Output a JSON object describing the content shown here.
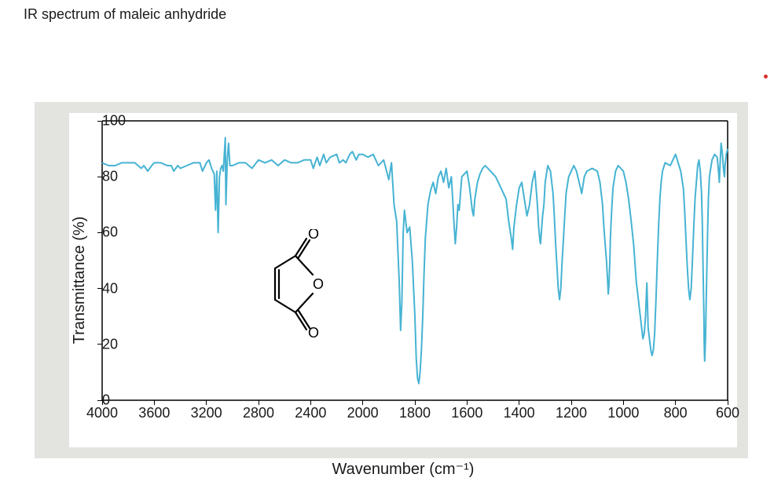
{
  "title": "IR spectrum of maleic anhydride",
  "chart": {
    "type": "line",
    "background_color": "#ffffff",
    "frame_color": "#e3e3e0",
    "line_color": "#46b3d3",
    "line_width": 2,
    "axis_color": "#000000",
    "axis_line_width": 1.5,
    "xlim": [
      4000,
      600
    ],
    "ylim": [
      0,
      100
    ],
    "xticks": [
      4000,
      3600,
      3200,
      2800,
      2400,
      2000,
      1800,
      1600,
      1400,
      1200,
      1000,
      800,
      600
    ],
    "yticks": [
      0,
      20,
      40,
      60,
      80,
      100
    ],
    "xlabel": "Wavenumber (cm⁻¹)",
    "ylabel": "Transmittance (%)",
    "label_fontsize": 20,
    "tick_fontsize": 18,
    "x_scale_break": 2000,
    "data": [
      [
        4000,
        85
      ],
      [
        3950,
        84
      ],
      [
        3900,
        84
      ],
      [
        3850,
        85
      ],
      [
        3800,
        85
      ],
      [
        3750,
        85
      ],
      [
        3700,
        83
      ],
      [
        3680,
        84
      ],
      [
        3650,
        82
      ],
      [
        3620,
        84
      ],
      [
        3600,
        85
      ],
      [
        3550,
        85
      ],
      [
        3500,
        84
      ],
      [
        3470,
        84
      ],
      [
        3450,
        82
      ],
      [
        3420,
        84
      ],
      [
        3400,
        83
      ],
      [
        3350,
        84
      ],
      [
        3300,
        85
      ],
      [
        3280,
        85
      ],
      [
        3250,
        85
      ],
      [
        3230,
        82
      ],
      [
        3200,
        85
      ],
      [
        3180,
        86
      ],
      [
        3160,
        83
      ],
      [
        3140,
        81
      ],
      [
        3130,
        68
      ],
      [
        3120,
        82
      ],
      [
        3110,
        60
      ],
      [
        3100,
        80
      ],
      [
        3090,
        83
      ],
      [
        3080,
        84
      ],
      [
        3070,
        82
      ],
      [
        3060,
        90
      ],
      [
        3055,
        94
      ],
      [
        3050,
        70
      ],
      [
        3040,
        86
      ],
      [
        3030,
        92
      ],
      [
        3020,
        84
      ],
      [
        3000,
        84
      ],
      [
        2950,
        85
      ],
      [
        2900,
        85
      ],
      [
        2850,
        83
      ],
      [
        2800,
        86
      ],
      [
        2750,
        85
      ],
      [
        2700,
        86
      ],
      [
        2650,
        84
      ],
      [
        2600,
        86
      ],
      [
        2550,
        85
      ],
      [
        2500,
        85
      ],
      [
        2450,
        86
      ],
      [
        2400,
        86
      ],
      [
        2380,
        83
      ],
      [
        2350,
        87
      ],
      [
        2330,
        84
      ],
      [
        2300,
        88
      ],
      [
        2280,
        85
      ],
      [
        2250,
        87
      ],
      [
        2200,
        88
      ],
      [
        2180,
        85
      ],
      [
        2150,
        86
      ],
      [
        2130,
        85
      ],
      [
        2100,
        88
      ],
      [
        2080,
        89
      ],
      [
        2050,
        86
      ],
      [
        2030,
        88
      ],
      [
        2000,
        88
      ],
      [
        1980,
        87
      ],
      [
        1960,
        88
      ],
      [
        1940,
        84
      ],
      [
        1920,
        86
      ],
      [
        1900,
        79
      ],
      [
        1890,
        85
      ],
      [
        1880,
        70
      ],
      [
        1870,
        64
      ],
      [
        1860,
        42
      ],
      [
        1855,
        25
      ],
      [
        1850,
        35
      ],
      [
        1845,
        60
      ],
      [
        1840,
        68
      ],
      [
        1830,
        60
      ],
      [
        1820,
        62
      ],
      [
        1810,
        50
      ],
      [
        1800,
        30
      ],
      [
        1795,
        15
      ],
      [
        1790,
        8
      ],
      [
        1785,
        6
      ],
      [
        1780,
        10
      ],
      [
        1775,
        18
      ],
      [
        1770,
        30
      ],
      [
        1765,
        45
      ],
      [
        1760,
        58
      ],
      [
        1750,
        70
      ],
      [
        1740,
        75
      ],
      [
        1730,
        78
      ],
      [
        1720,
        74
      ],
      [
        1710,
        80
      ],
      [
        1700,
        82
      ],
      [
        1690,
        78
      ],
      [
        1680,
        83
      ],
      [
        1670,
        76
      ],
      [
        1660,
        80
      ],
      [
        1655,
        72
      ],
      [
        1650,
        63
      ],
      [
        1645,
        56
      ],
      [
        1640,
        62
      ],
      [
        1635,
        70
      ],
      [
        1630,
        68
      ],
      [
        1625,
        74
      ],
      [
        1620,
        80
      ],
      [
        1600,
        82
      ],
      [
        1590,
        76
      ],
      [
        1580,
        68
      ],
      [
        1575,
        66
      ],
      [
        1570,
        72
      ],
      [
        1560,
        78
      ],
      [
        1550,
        81
      ],
      [
        1540,
        83
      ],
      [
        1530,
        84
      ],
      [
        1510,
        82
      ],
      [
        1490,
        80
      ],
      [
        1470,
        76
      ],
      [
        1450,
        72
      ],
      [
        1440,
        64
      ],
      [
        1430,
        58
      ],
      [
        1425,
        54
      ],
      [
        1420,
        62
      ],
      [
        1410,
        70
      ],
      [
        1400,
        76
      ],
      [
        1390,
        78
      ],
      [
        1380,
        72
      ],
      [
        1370,
        66
      ],
      [
        1360,
        70
      ],
      [
        1350,
        78
      ],
      [
        1340,
        82
      ],
      [
        1330,
        70
      ],
      [
        1325,
        62
      ],
      [
        1320,
        57
      ],
      [
        1318,
        56
      ],
      [
        1315,
        60
      ],
      [
        1310,
        66
      ],
      [
        1305,
        70
      ],
      [
        1300,
        78
      ],
      [
        1290,
        84
      ],
      [
        1280,
        82
      ],
      [
        1270,
        74
      ],
      [
        1265,
        66
      ],
      [
        1260,
        56
      ],
      [
        1255,
        48
      ],
      [
        1250,
        40
      ],
      [
        1245,
        36
      ],
      [
        1240,
        40
      ],
      [
        1235,
        50
      ],
      [
        1230,
        58
      ],
      [
        1225,
        66
      ],
      [
        1220,
        74
      ],
      [
        1210,
        80
      ],
      [
        1200,
        82
      ],
      [
        1190,
        84
      ],
      [
        1180,
        82
      ],
      [
        1170,
        78
      ],
      [
        1160,
        74
      ],
      [
        1150,
        80
      ],
      [
        1140,
        82
      ],
      [
        1120,
        83
      ],
      [
        1100,
        82
      ],
      [
        1090,
        78
      ],
      [
        1080,
        70
      ],
      [
        1075,
        62
      ],
      [
        1070,
        56
      ],
      [
        1065,
        50
      ],
      [
        1060,
        42
      ],
      [
        1058,
        38
      ],
      [
        1055,
        42
      ],
      [
        1052,
        50
      ],
      [
        1050,
        58
      ],
      [
        1045,
        68
      ],
      [
        1040,
        76
      ],
      [
        1030,
        82
      ],
      [
        1020,
        84
      ],
      [
        1000,
        82
      ],
      [
        990,
        78
      ],
      [
        980,
        72
      ],
      [
        970,
        64
      ],
      [
        960,
        55
      ],
      [
        955,
        48
      ],
      [
        950,
        42
      ],
      [
        945,
        38
      ],
      [
        940,
        34
      ],
      [
        935,
        30
      ],
      [
        930,
        26
      ],
      [
        925,
        22
      ],
      [
        920,
        24
      ],
      [
        915,
        30
      ],
      [
        910,
        42
      ],
      [
        905,
        26
      ],
      [
        900,
        22
      ],
      [
        895,
        18
      ],
      [
        890,
        16
      ],
      [
        885,
        18
      ],
      [
        880,
        24
      ],
      [
        875,
        36
      ],
      [
        870,
        50
      ],
      [
        865,
        62
      ],
      [
        860,
        72
      ],
      [
        855,
        78
      ],
      [
        850,
        82
      ],
      [
        840,
        85
      ],
      [
        820,
        84
      ],
      [
        810,
        86
      ],
      [
        800,
        88
      ],
      [
        790,
        85
      ],
      [
        780,
        82
      ],
      [
        770,
        76
      ],
      [
        765,
        68
      ],
      [
        760,
        58
      ],
      [
        755,
        48
      ],
      [
        750,
        40
      ],
      [
        745,
        36
      ],
      [
        740,
        40
      ],
      [
        735,
        50
      ],
      [
        730,
        62
      ],
      [
        725,
        72
      ],
      [
        720,
        78
      ],
      [
        715,
        84
      ],
      [
        710,
        86
      ],
      [
        705,
        82
      ],
      [
        700,
        74
      ],
      [
        697,
        63
      ],
      [
        695,
        51
      ],
      [
        693,
        40
      ],
      [
        691,
        30
      ],
      [
        690,
        22
      ],
      [
        689,
        16
      ],
      [
        688,
        14
      ],
      [
        687,
        16
      ],
      [
        685,
        22
      ],
      [
        683,
        32
      ],
      [
        680,
        46
      ],
      [
        677,
        60
      ],
      [
        674,
        72
      ],
      [
        670,
        80
      ],
      [
        660,
        86
      ],
      [
        650,
        88
      ],
      [
        640,
        87
      ],
      [
        635,
        82
      ],
      [
        632,
        78
      ],
      [
        630,
        82
      ],
      [
        627,
        88
      ],
      [
        625,
        92
      ],
      [
        620,
        88
      ],
      [
        615,
        82
      ],
      [
        612,
        80
      ],
      [
        610,
        84
      ],
      [
        605,
        88
      ],
      [
        600,
        90
      ]
    ]
  },
  "molecule": {
    "label": "maleic anhydride structure",
    "stroke": "#000000",
    "O_label": "O"
  }
}
